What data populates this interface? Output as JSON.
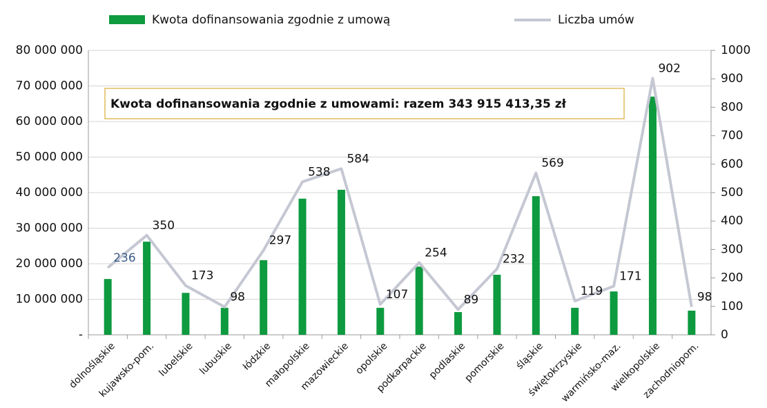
{
  "chart_data": {
    "type": "bar-line",
    "annotation": "Kwota dofinansowania zgodnie z umowami: razem 343 915 413,35 zł",
    "categories": [
      "dolnośląskie",
      "kujawsko-pom.",
      "lubelskie",
      "lubuskie",
      "łódzkie",
      "małopolskie",
      "mazowieckie",
      "opolskie",
      "podkarpackie",
      "podlaskie",
      "pomorskie",
      "śląskie",
      "świętokrzyskie",
      "warmińsko-maz.",
      "wielkopolskie",
      "zachodniopom."
    ],
    "series": [
      {
        "name": "Kwota dofinansowania zgodnie z umową",
        "type": "bar",
        "color": "#0e9a3f",
        "values": [
          15700000,
          26200000,
          11800000,
          7600000,
          21000000,
          38300000,
          40800000,
          7600000,
          19200000,
          6400000,
          16900000,
          39000000,
          7600000,
          12200000,
          67000000,
          6800000
        ]
      },
      {
        "name": "Liczba umów",
        "type": "line",
        "axis": "y2",
        "color": "#c5c8d3",
        "values": [
          236,
          350,
          173,
          98,
          297,
          538,
          584,
          107,
          254,
          89,
          232,
          569,
          119,
          171,
          902,
          98
        ]
      }
    ],
    "ylim": [
      0,
      80000000
    ],
    "yticks": [
      {
        "value": 0,
        "label": "-"
      },
      {
        "value": 10000000,
        "label": "10 000 000"
      },
      {
        "value": 20000000,
        "label": "20 000 000"
      },
      {
        "value": 30000000,
        "label": "30 000 000"
      },
      {
        "value": 40000000,
        "label": "40 000 000"
      },
      {
        "value": 50000000,
        "label": "50 000 000"
      },
      {
        "value": 60000000,
        "label": "60 000 000"
      },
      {
        "value": 70000000,
        "label": "70 000 000"
      },
      {
        "value": 80000000,
        "label": "80 000 000"
      }
    ],
    "y2lim": [
      0,
      1000
    ],
    "y2ticks": [
      0,
      100,
      200,
      300,
      400,
      500,
      600,
      700,
      800,
      900,
      1000
    ],
    "grid": true
  }
}
